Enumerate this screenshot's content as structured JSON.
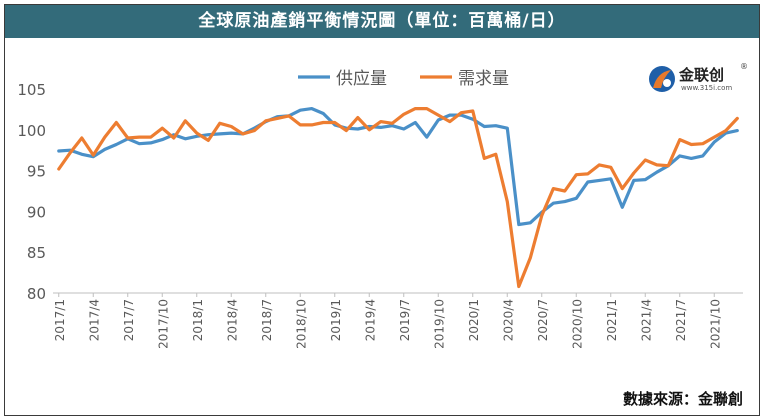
{
  "title": "全球原油產銷平衡情況圖（單位：百萬桶/日）",
  "source": "數據來源：金聯創",
  "logo": {
    "name": "金联创",
    "site": "www.315i.com",
    "mark": "®",
    "icon": "jinlianchuang-logo-icon"
  },
  "colors": {
    "title_bg": "#336b7a",
    "supply": "#4a90c8",
    "demand": "#ed7d31"
  },
  "chart_data": {
    "type": "line",
    "ylim": [
      80,
      105
    ],
    "yticks": [
      80,
      85,
      90,
      95,
      100,
      105
    ],
    "grid": false,
    "legend_position": "top-center",
    "xtick_labels": [
      "2017/1",
      "2017/4",
      "2017/7",
      "2017/10",
      "2018/1",
      "2018/4",
      "2018/7",
      "2018/10",
      "2019/1",
      "2019/4",
      "2019/7",
      "2019/10",
      "2020/1",
      "2020/4",
      "2020/7",
      "2020/10",
      "2021/1",
      "2021/4",
      "2021/7",
      "2021/10"
    ],
    "xtick_every": 3,
    "x": [
      "2017/1",
      "2017/2",
      "2017/3",
      "2017/4",
      "2017/5",
      "2017/6",
      "2017/7",
      "2017/8",
      "2017/9",
      "2017/10",
      "2017/11",
      "2017/12",
      "2018/1",
      "2018/2",
      "2018/3",
      "2018/4",
      "2018/5",
      "2018/6",
      "2018/7",
      "2018/8",
      "2018/9",
      "2018/10",
      "2018/11",
      "2018/12",
      "2019/1",
      "2019/2",
      "2019/3",
      "2019/4",
      "2019/5",
      "2019/6",
      "2019/7",
      "2019/8",
      "2019/9",
      "2019/10",
      "2019/11",
      "2019/12",
      "2020/1",
      "2020/2",
      "2020/3",
      "2020/4",
      "2020/5",
      "2020/6",
      "2020/7",
      "2020/8",
      "2020/9",
      "2020/10",
      "2020/11",
      "2020/12",
      "2021/1",
      "2021/2",
      "2021/3",
      "2021/4",
      "2021/5",
      "2021/6",
      "2021/7",
      "2021/8",
      "2021/9",
      "2021/10",
      "2021/11",
      "2021/12"
    ],
    "series": [
      {
        "name": "供应量",
        "values": [
          97.4,
          97.5,
          97.0,
          96.7,
          97.6,
          98.2,
          98.9,
          98.3,
          98.4,
          98.8,
          99.4,
          98.9,
          99.2,
          99.4,
          99.5,
          99.6,
          99.5,
          100.2,
          101.0,
          101.6,
          101.7,
          102.4,
          102.6,
          102.0,
          100.6,
          100.2,
          100.1,
          100.4,
          100.3,
          100.5,
          100.1,
          100.9,
          99.1,
          101.2,
          101.8,
          101.8,
          101.3,
          100.4,
          100.5,
          100.2,
          88.4,
          88.6,
          89.9,
          91.0,
          91.2,
          91.6,
          93.6,
          93.8,
          94.0,
          90.5,
          93.8,
          93.9,
          94.8,
          95.6,
          96.8,
          96.5,
          96.8,
          98.5,
          99.6,
          99.9
        ]
      },
      {
        "name": "需求量",
        "values": [
          95.2,
          97.2,
          99.0,
          96.9,
          99.1,
          100.9,
          99.0,
          99.1,
          99.1,
          100.2,
          99.0,
          101.1,
          99.6,
          98.7,
          100.8,
          100.4,
          99.5,
          99.9,
          101.1,
          101.4,
          101.7,
          100.6,
          100.6,
          100.9,
          100.9,
          99.9,
          101.5,
          100.0,
          101.0,
          100.8,
          101.9,
          102.6,
          102.6,
          101.8,
          101.0,
          102.1,
          102.3,
          96.5,
          97.0,
          91.2,
          80.8,
          84.3,
          89.5,
          92.8,
          92.5,
          94.5,
          94.6,
          95.7,
          95.4,
          92.8,
          94.7,
          96.3,
          95.7,
          95.6,
          98.8,
          98.2,
          98.3,
          99.1,
          99.9,
          101.4
        ]
      }
    ]
  }
}
